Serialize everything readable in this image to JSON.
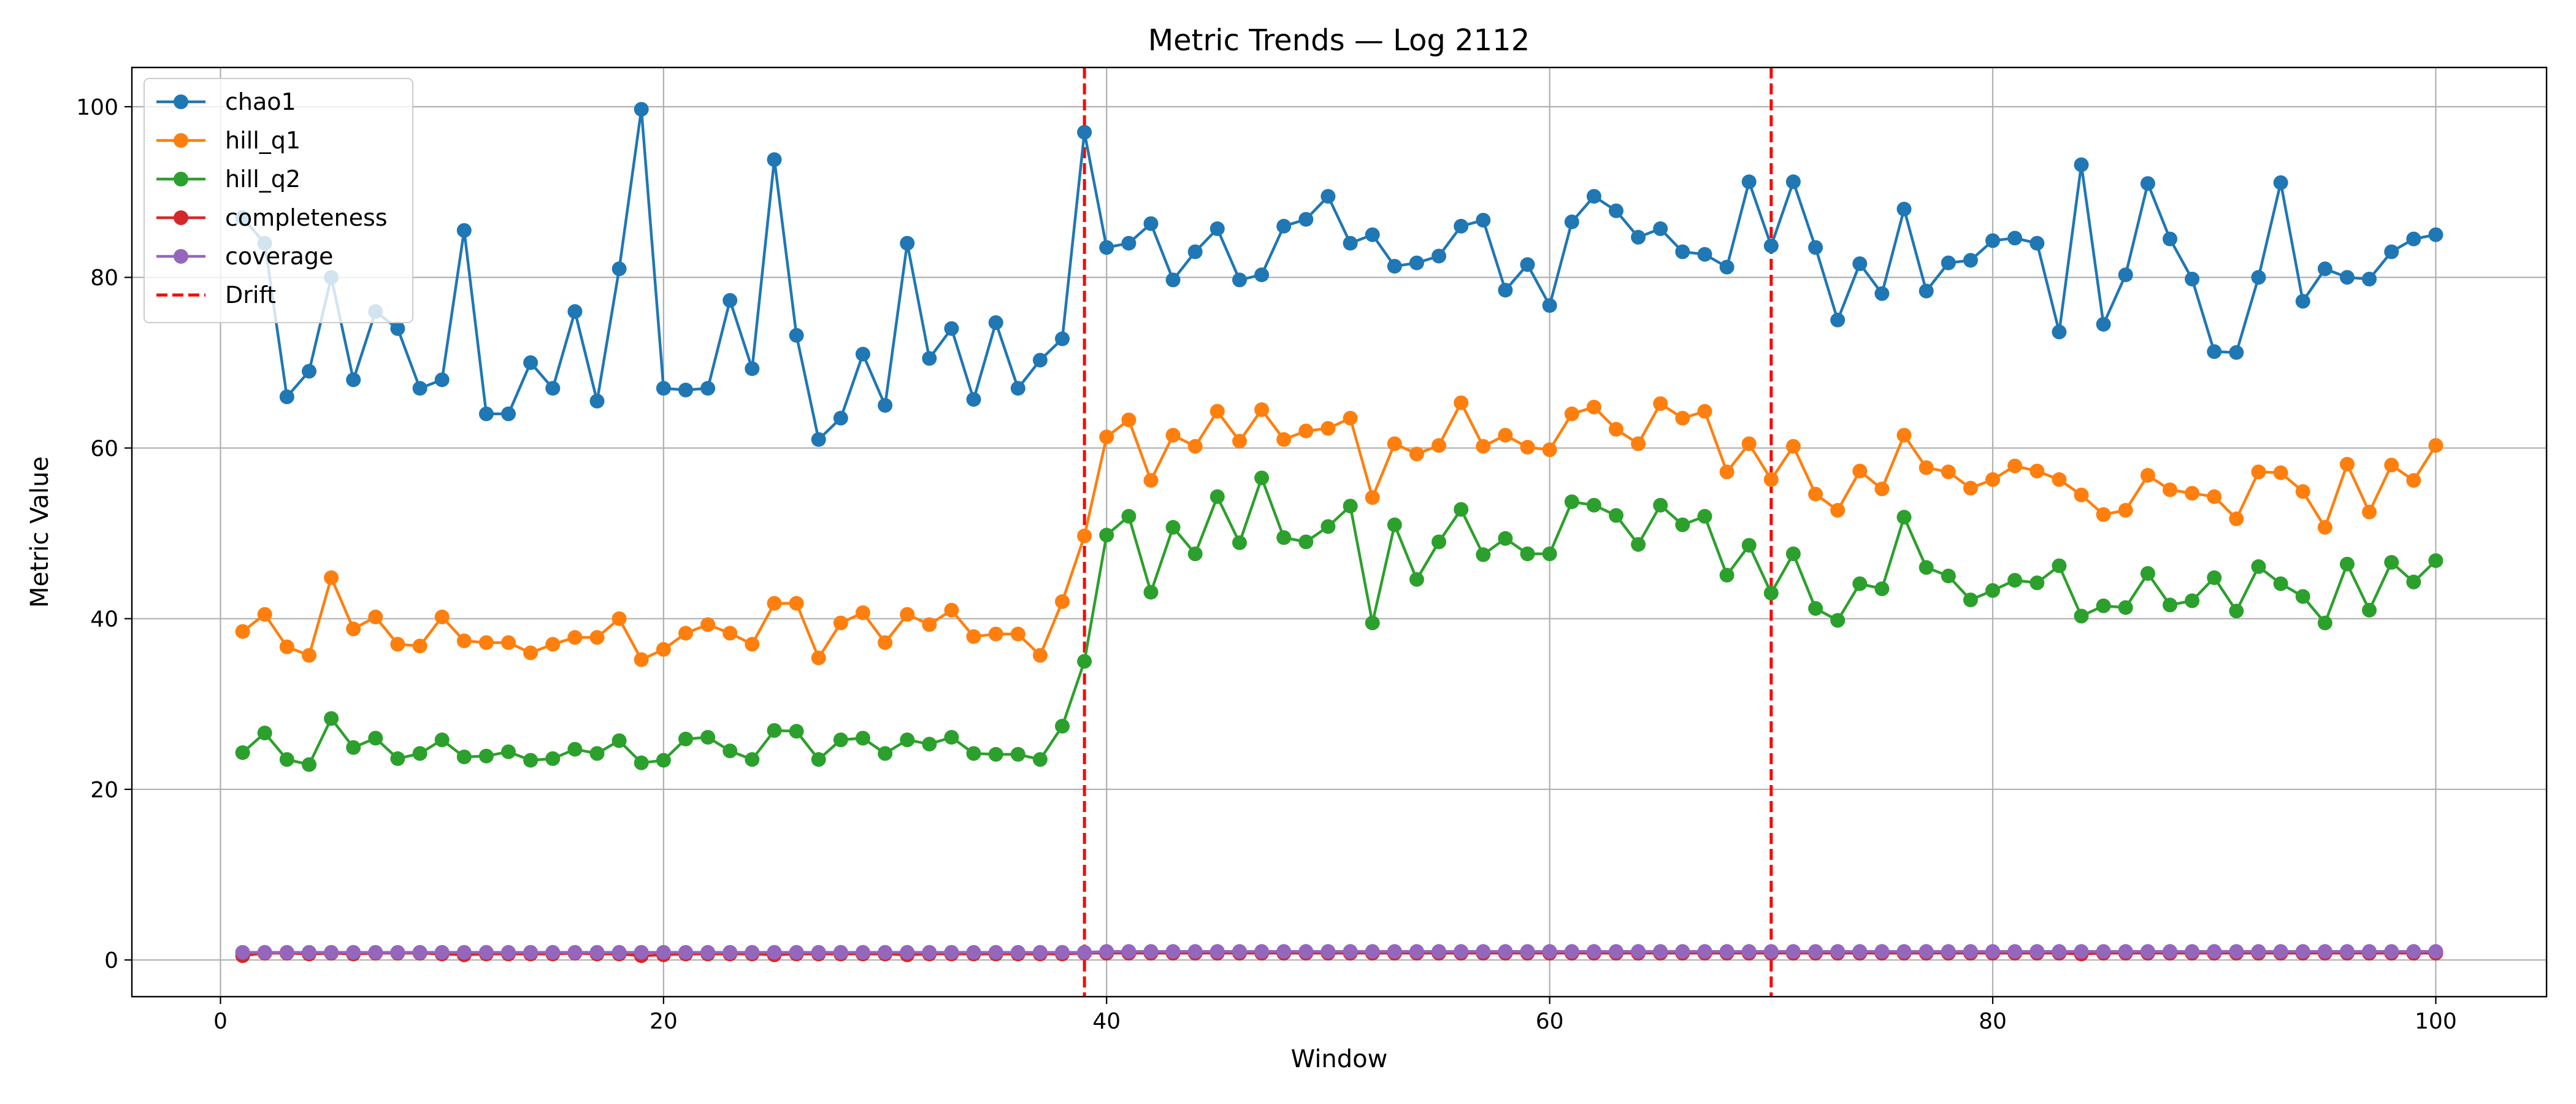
{
  "chart_data": {
    "type": "line",
    "title": "Metric Trends — Log 2112",
    "xlabel": "Window",
    "ylabel": "Metric Value",
    "xlim": [
      -4,
      105
    ],
    "ylim": [
      -4.3,
      104.6
    ],
    "xticks": [
      0,
      20,
      40,
      60,
      80,
      100
    ],
    "yticks": [
      0,
      20,
      40,
      60,
      80,
      100
    ],
    "grid": true,
    "legend_position": "top-left",
    "x": [
      1,
      2,
      3,
      4,
      5,
      6,
      7,
      8,
      9,
      10,
      11,
      12,
      13,
      14,
      15,
      16,
      17,
      18,
      19,
      20,
      21,
      22,
      23,
      24,
      25,
      26,
      27,
      28,
      29,
      30,
      31,
      32,
      33,
      34,
      35,
      36,
      37,
      38,
      39,
      40,
      41,
      42,
      43,
      44,
      45,
      46,
      47,
      48,
      49,
      50,
      51,
      52,
      53,
      54,
      55,
      56,
      57,
      58,
      59,
      60,
      61,
      62,
      63,
      64,
      65,
      66,
      67,
      68,
      69,
      70,
      71,
      72,
      73,
      74,
      75,
      76,
      77,
      78,
      79,
      80,
      81,
      82,
      83,
      84,
      85,
      86,
      87,
      88,
      89,
      90,
      91,
      92,
      93,
      94,
      95,
      96,
      97,
      98,
      99,
      100
    ],
    "series": [
      {
        "name": "chao1",
        "color": "#1f77b4",
        "values": [
          87,
          84,
          66,
          69,
          80,
          68,
          76,
          74,
          67,
          68,
          85.5,
          64,
          64,
          70,
          67,
          76,
          65.5,
          81,
          99.7,
          67,
          66.8,
          67,
          77.3,
          69.3,
          93.8,
          73.2,
          61,
          63.5,
          71,
          65,
          84,
          70.5,
          74,
          65.7,
          74.7,
          67,
          70.3,
          72.8,
          97,
          83.5,
          84,
          86.3,
          79.7,
          83,
          85.7,
          79.7,
          80.3,
          86,
          86.8,
          89.5,
          84,
          85,
          81.3,
          81.7,
          82.5,
          86,
          86.7,
          78.5,
          81.5,
          76.7,
          86.5,
          89.5,
          87.8,
          84.7,
          85.7,
          83,
          82.7,
          81.2,
          91.2,
          83.7,
          91.2,
          83.5,
          75,
          81.6,
          78.1,
          88,
          78.4,
          81.7,
          82,
          84.3,
          84.6,
          84,
          73.6,
          93.2,
          74.5,
          80.3,
          91,
          84.5,
          79.8,
          71.3,
          71.2,
          80,
          91.1,
          77.2,
          81,
          80,
          79.8,
          83,
          84.5,
          85
        ]
      },
      {
        "name": "hill_q1",
        "color": "#ff7f0e",
        "values": [
          38.5,
          40.5,
          36.7,
          35.7,
          44.8,
          38.8,
          40.2,
          37,
          36.8,
          40.2,
          37.4,
          37.2,
          37.2,
          36,
          37,
          37.8,
          37.8,
          40,
          35.2,
          36.4,
          38.3,
          39.3,
          38.3,
          37,
          41.8,
          41.8,
          35.4,
          39.5,
          40.7,
          37.2,
          40.5,
          39.3,
          41,
          37.9,
          38.2,
          38.2,
          35.7,
          42,
          49.7,
          61.3,
          63.3,
          56.2,
          61.5,
          60.2,
          64.3,
          60.8,
          64.5,
          61,
          62,
          62.3,
          63.5,
          54.2,
          60.5,
          59.3,
          60.3,
          65.3,
          60.2,
          61.5,
          60.1,
          59.8,
          64,
          64.8,
          62.2,
          60.5,
          65.2,
          63.5,
          64.3,
          57.2,
          60.5,
          56.3,
          60.2,
          54.6,
          52.7,
          57.3,
          55.2,
          61.5,
          57.7,
          57.2,
          55.3,
          56.3,
          57.9,
          57.3,
          56.3,
          54.5,
          52.2,
          52.7,
          56.8,
          55.1,
          54.7,
          54.3,
          51.7,
          57.2,
          57.1,
          54.9,
          50.7,
          58.1,
          52.5,
          58,
          56.2,
          60.3
        ]
      },
      {
        "name": "hill_q2",
        "color": "#2ca02c",
        "values": [
          24.3,
          26.6,
          23.5,
          22.9,
          28.3,
          24.9,
          26,
          23.6,
          24.2,
          25.8,
          23.8,
          23.9,
          24.4,
          23.4,
          23.6,
          24.7,
          24.2,
          25.7,
          23.1,
          23.4,
          25.9,
          26.1,
          24.5,
          23.5,
          26.9,
          26.8,
          23.5,
          25.8,
          26,
          24.2,
          25.8,
          25.3,
          26.1,
          24.2,
          24.1,
          24.1,
          23.5,
          27.4,
          35,
          49.8,
          52,
          43.1,
          50.7,
          47.6,
          54.3,
          48.9,
          56.5,
          49.5,
          49,
          50.8,
          53.2,
          39.5,
          51,
          44.6,
          49,
          52.8,
          47.5,
          49.4,
          47.6,
          47.6,
          53.7,
          53.3,
          52.1,
          48.7,
          53.3,
          51,
          52,
          45.1,
          48.6,
          43,
          47.6,
          41.2,
          39.8,
          44.1,
          43.5,
          51.9,
          46,
          45,
          42.2,
          43.3,
          44.5,
          44.2,
          46.2,
          40.3,
          41.5,
          41.3,
          45.3,
          41.6,
          42.1,
          44.8,
          40.9,
          46.1,
          44.1,
          42.6,
          39.5,
          46.4,
          41,
          46.6,
          44.3,
          46.8
        ]
      },
      {
        "name": "completeness",
        "color": "#d62728",
        "values": [
          0.5,
          0.8,
          0.8,
          0.7,
          0.8,
          0.7,
          0.8,
          0.8,
          0.8,
          0.7,
          0.6,
          0.7,
          0.7,
          0.7,
          0.7,
          0.8,
          0.7,
          0.7,
          0.5,
          0.6,
          0.7,
          0.7,
          0.7,
          0.7,
          0.6,
          0.7,
          0.7,
          0.7,
          0.7,
          0.7,
          0.6,
          0.7,
          0.7,
          0.7,
          0.7,
          0.7,
          0.7,
          0.7,
          0.8,
          0.8,
          0.8,
          0.8,
          0.8,
          0.8,
          0.8,
          0.8,
          0.8,
          0.8,
          0.8,
          0.8,
          0.8,
          0.8,
          0.8,
          0.8,
          0.8,
          0.8,
          0.8,
          0.8,
          0.8,
          0.8,
          0.8,
          0.8,
          0.8,
          0.8,
          0.8,
          0.8,
          0.8,
          0.8,
          0.8,
          0.8,
          0.8,
          0.8,
          0.8,
          0.8,
          0.8,
          0.8,
          0.8,
          0.8,
          0.8,
          0.8,
          0.8,
          0.8,
          0.8,
          0.7,
          0.8,
          0.8,
          0.8,
          0.8,
          0.8,
          0.8,
          0.8,
          0.8,
          0.8,
          0.8,
          0.8,
          0.8,
          0.8,
          0.8,
          0.8,
          0.8
        ]
      },
      {
        "name": "coverage",
        "color": "#9467bd",
        "values": [
          0.9,
          0.9,
          0.9,
          0.9,
          0.9,
          0.9,
          0.9,
          0.9,
          0.9,
          0.9,
          0.9,
          0.9,
          0.9,
          0.9,
          0.9,
          0.9,
          0.9,
          0.9,
          0.9,
          0.9,
          0.9,
          0.9,
          0.9,
          0.9,
          0.9,
          0.9,
          0.9,
          0.9,
          0.9,
          0.9,
          0.9,
          0.9,
          0.9,
          0.9,
          0.9,
          0.9,
          0.9,
          0.9,
          0.9,
          1,
          1,
          1,
          1,
          1,
          1,
          1,
          1,
          1,
          1,
          1,
          1,
          1,
          1,
          1,
          1,
          1,
          1,
          1,
          1,
          1,
          1,
          1,
          1,
          1,
          1,
          1,
          1,
          1,
          1,
          1,
          1,
          1,
          1,
          1,
          1,
          1,
          1,
          1,
          1,
          1,
          1,
          1,
          1,
          1,
          1,
          1,
          1,
          1,
          1,
          1,
          1,
          1,
          1,
          1,
          1,
          1,
          1,
          1,
          1,
          1
        ]
      }
    ],
    "drift": {
      "name": "Drift",
      "color": "#ff0000",
      "x": [
        39,
        70
      ]
    }
  }
}
